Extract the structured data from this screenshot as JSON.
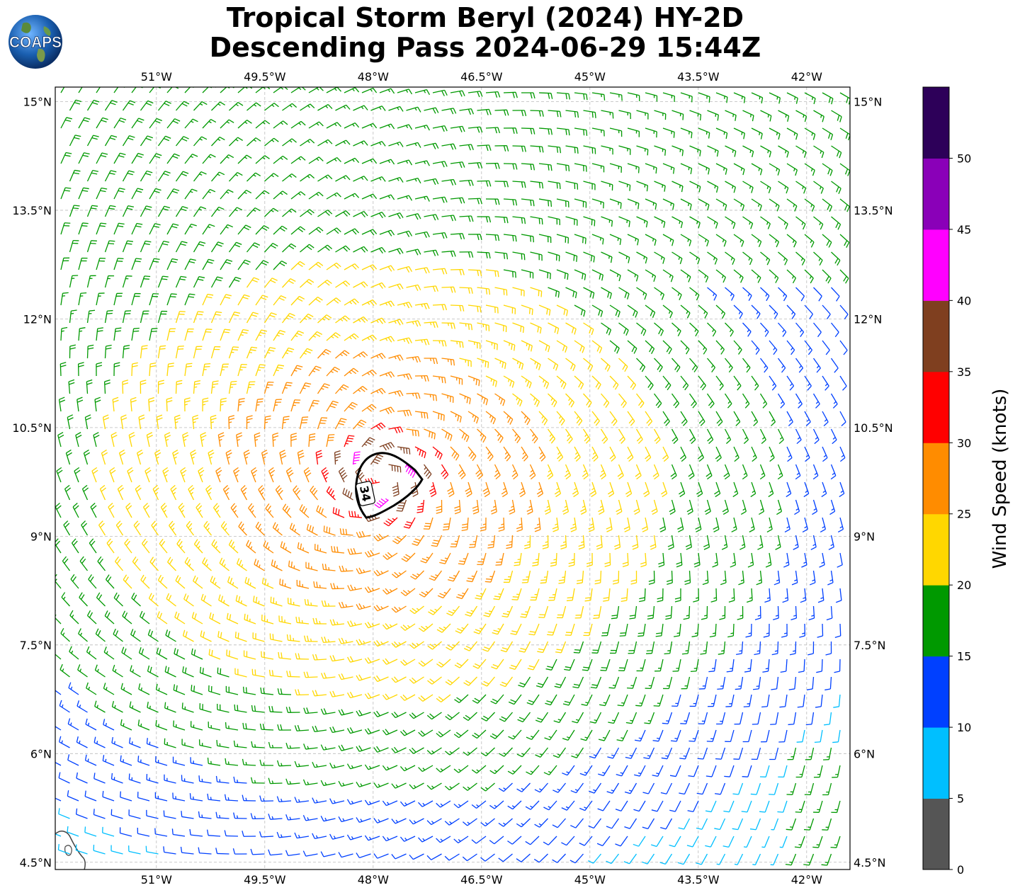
{
  "title": {
    "line1": "Tropical Storm Beryl (2024) HY-2D",
    "line2": "Descending Pass 2024-06-29 15:44Z"
  },
  "logo": {
    "text": "COAPS",
    "icon": "globe-icon"
  },
  "map": {
    "lon_range": [
      -52.4,
      -41.4
    ],
    "lat_range": [
      4.4,
      15.2
    ],
    "lon_ticks": [
      "51°W",
      "49.5°W",
      "48°W",
      "46.5°W",
      "45°W",
      "43.5°W",
      "42°W"
    ],
    "lon_tick_values": [
      -51,
      -49.5,
      -48,
      -46.5,
      -45,
      -43.5,
      -42
    ],
    "lat_ticks": [
      "15°N",
      "13.5°N",
      "12°N",
      "10.5°N",
      "9°N",
      "7.5°N",
      "6°N",
      "4.5°N"
    ],
    "lat_tick_values": [
      15,
      13.5,
      12,
      10.5,
      9,
      7.5,
      6,
      4.5
    ],
    "gridlines": true,
    "storm_center": {
      "lon": -47.9,
      "lat": 9.8
    },
    "contour": {
      "label": "34",
      "description": "34-knot wind radius"
    }
  },
  "colorbar": {
    "label": "Wind Speed (knots)",
    "ticks": [
      "0",
      "5",
      "10",
      "15",
      "20",
      "25",
      "30",
      "35",
      "40",
      "45",
      "50"
    ],
    "colors": [
      "#555555",
      "#00bfff",
      "#0040ff",
      "#009900",
      "#ffd700",
      "#ff8c00",
      "#ff0000",
      "#7f3f1f",
      "#ff00ff",
      "#8a00b8",
      "#2d0059"
    ]
  }
}
